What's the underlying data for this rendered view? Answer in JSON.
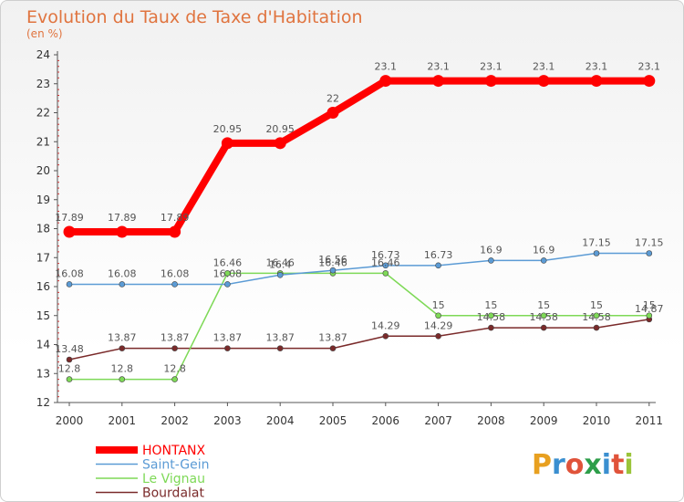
{
  "header": {
    "title": "Evolution du Taux de Taxe d'Habitation",
    "subtitle": "(en %)"
  },
  "brand": {
    "letters": [
      "P",
      "r",
      "o",
      "x",
      "i",
      "t",
      "i"
    ],
    "colors": [
      "#e8a020",
      "#3a8fd0",
      "#e0533a",
      "#2e9e4a",
      "#3a8fd0",
      "#e0533a",
      "#9ac43a"
    ]
  },
  "chart_data": {
    "type": "line",
    "title": "Evolution du Taux de Taxe d'Habitation",
    "subtitle": "(en %)",
    "xlabel": "",
    "ylabel": "",
    "x": [
      "2000",
      "2001",
      "2002",
      "2003",
      "2004",
      "2005",
      "2006",
      "2007",
      "2008",
      "2009",
      "2010",
      "2011"
    ],
    "ylim": [
      12,
      24
    ],
    "yticks": [
      12,
      13,
      14,
      15,
      16,
      17,
      18,
      19,
      20,
      21,
      22,
      23,
      24
    ],
    "grid": false,
    "legend_position": "bottom-left",
    "series": [
      {
        "name": "HONTANX",
        "color": "#ff0000",
        "values": [
          17.89,
          17.89,
          17.89,
          20.95,
          20.95,
          22,
          23.1,
          23.1,
          23.1,
          23.1,
          23.1,
          23.1
        ],
        "labels": [
          "17.89",
          "17.89",
          "17.89",
          "20.95",
          "20.95",
          "22",
          "23.1",
          "23.1",
          "23.1",
          "23.1",
          "23.1",
          "23.1"
        ]
      },
      {
        "name": "Saint-Gein",
        "color": "#5b9bd5",
        "values": [
          16.08,
          16.08,
          16.08,
          16.08,
          16.4,
          16.56,
          16.73,
          16.73,
          16.9,
          16.9,
          17.15,
          17.15
        ],
        "labels": [
          "16.08",
          "16.08",
          "16.08",
          "16.08",
          "16.4",
          "16.56",
          "16.73",
          "16.73",
          "16.9",
          "16.9",
          "17.15",
          "17.15"
        ]
      },
      {
        "name": "Le Vignau",
        "color": "#7ed957",
        "values": [
          12.8,
          12.8,
          12.8,
          16.46,
          16.46,
          16.46,
          16.46,
          15,
          15,
          15,
          15,
          15
        ],
        "labels": [
          "12.8",
          "12.8",
          "12.8",
          "16.46",
          "16.46",
          "16.46",
          "16.46",
          "15",
          "15",
          "15",
          "15",
          "15"
        ]
      },
      {
        "name": "Bourdalat",
        "color": "#7a2a2a",
        "values": [
          13.48,
          13.87,
          13.87,
          13.87,
          13.87,
          13.87,
          14.29,
          14.29,
          14.58,
          14.58,
          14.58,
          14.87
        ],
        "labels": [
          "13.48",
          "13.87",
          "13.87",
          "13.87",
          "13.87",
          "13.87",
          "14.29",
          "14.29",
          "14.58",
          "14.58",
          "14.58",
          "14.87"
        ]
      }
    ]
  }
}
